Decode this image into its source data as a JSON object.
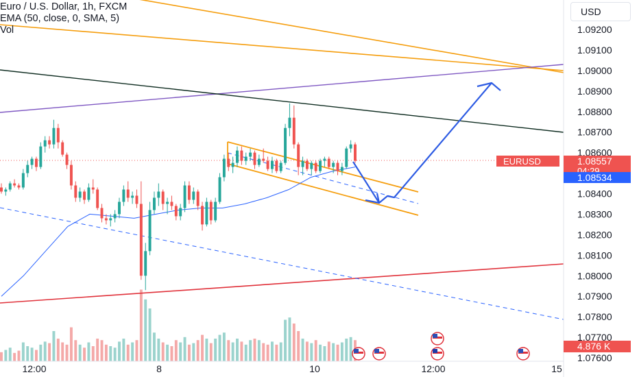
{
  "legend": {
    "symbol_line": "Euro / U.S. Dollar, 1h, FXCM",
    "ema_line": "EMA (50, close, 0, SMA, 5)",
    "vol_line": "Vol"
  },
  "currency_button": "USD",
  "badges": {
    "symbol": "EURUSD",
    "price": "1.08557",
    "countdown": "04:29",
    "ema_value": "1.08534",
    "volume_value": "4.876 K"
  },
  "colors": {
    "up": "#26a69a",
    "down": "#ef5350",
    "ema": "#2962ff",
    "orange": "#f59d0c",
    "purple": "#7e57c2",
    "red_line": "#e0313a",
    "dark_line": "#0d2b1f",
    "arrow": "#2d5be3"
  },
  "chart_data": {
    "type": "candlestick",
    "symbol": "EURUSD",
    "timeframe": "1h",
    "y_ticks": [
      "1.09200",
      "1.09100",
      "1.09000",
      "1.08900",
      "1.08800",
      "1.08700",
      "1.08600",
      "1.08400",
      "1.08300",
      "1.08200",
      "1.08100",
      "1.08000",
      "1.07900",
      "1.07800",
      "1.07700",
      "1.07600"
    ],
    "y_range": [
      1.0756,
      1.0934
    ],
    "x_ticks": [
      "12:00",
      "8",
      "10",
      "12:00",
      "15"
    ],
    "candles": [
      [
        1.0843,
        1.0845,
        1.084,
        1.0841
      ],
      [
        1.0841,
        1.0843,
        1.0839,
        1.0842
      ],
      [
        1.0842,
        1.0846,
        1.0841,
        1.0845
      ],
      [
        1.0845,
        1.0847,
        1.0843,
        1.0844
      ],
      [
        1.0844,
        1.0845,
        1.0842,
        1.0843
      ],
      [
        1.0843,
        1.0852,
        1.0842,
        1.085
      ],
      [
        1.085,
        1.0856,
        1.0848,
        1.0854
      ],
      [
        1.0854,
        1.0858,
        1.0852,
        1.0857
      ],
      [
        1.0857,
        1.0858,
        1.0851,
        1.0853
      ],
      [
        1.0853,
        1.0865,
        1.0852,
        1.0863
      ],
      [
        1.0863,
        1.0868,
        1.086,
        1.0866
      ],
      [
        1.0866,
        1.0868,
        1.0862,
        1.0864
      ],
      [
        1.0864,
        1.0876,
        1.0862,
        1.0872
      ],
      [
        1.0872,
        1.0874,
        1.0862,
        1.0865
      ],
      [
        1.0865,
        1.0866,
        1.0858,
        1.0859
      ],
      [
        1.0859,
        1.086,
        1.0852,
        1.0854
      ],
      [
        1.0854,
        1.0856,
        1.0842,
        1.0844
      ],
      [
        1.0844,
        1.0846,
        1.0836,
        1.0838
      ],
      [
        1.0838,
        1.0843,
        1.0836,
        1.0841
      ],
      [
        1.0841,
        1.0842,
        1.0835,
        1.0837
      ],
      [
        1.0837,
        1.0845,
        1.0836,
        1.0843
      ],
      [
        1.0843,
        1.0847,
        1.084,
        1.0842
      ],
      [
        1.0842,
        1.0843,
        1.0832,
        1.0833
      ],
      [
        1.0833,
        1.0835,
        1.0826,
        1.0828
      ],
      [
        1.0828,
        1.083,
        1.0825,
        1.0827
      ],
      [
        1.0827,
        1.083,
        1.0824,
        1.0828
      ],
      [
        1.0828,
        1.0832,
        1.0826,
        1.083
      ],
      [
        1.083,
        1.0838,
        1.0828,
        1.0836
      ],
      [
        1.0836,
        1.0844,
        1.0834,
        1.0842
      ],
      [
        1.0842,
        1.0846,
        1.0836,
        1.0838
      ],
      [
        1.0838,
        1.0841,
        1.0835,
        1.0839
      ],
      [
        1.0839,
        1.0842,
        1.0833,
        1.0835
      ],
      [
        1.0835,
        1.0846,
        1.0798,
        1.08
      ],
      [
        1.08,
        1.0816,
        1.0793,
        1.0812
      ],
      [
        1.0812,
        1.0836,
        1.081,
        1.0832
      ],
      [
        1.0832,
        1.0841,
        1.083,
        1.0838
      ],
      [
        1.0838,
        1.0845,
        1.0834,
        1.0841
      ],
      [
        1.0841,
        1.0842,
        1.0832,
        1.0835
      ],
      [
        1.0835,
        1.0838,
        1.083,
        1.0836
      ],
      [
        1.0836,
        1.0839,
        1.0832,
        1.0834
      ],
      [
        1.0834,
        1.0835,
        1.0827,
        1.0829
      ],
      [
        1.0829,
        1.0835,
        1.0827,
        1.0833
      ],
      [
        1.0833,
        1.0846,
        1.0831,
        1.0844
      ],
      [
        1.0844,
        1.0846,
        1.0835,
        1.0837
      ],
      [
        1.0837,
        1.0843,
        1.0835,
        1.0841
      ],
      [
        1.0841,
        1.0842,
        1.0832,
        1.0834
      ],
      [
        1.0834,
        1.0836,
        1.0822,
        1.0825
      ],
      [
        1.0825,
        1.0838,
        1.0824,
        1.0836
      ],
      [
        1.0836,
        1.0837,
        1.0825,
        1.0827
      ],
      [
        1.0827,
        1.0838,
        1.0826,
        1.0836
      ],
      [
        1.0836,
        1.085,
        1.0835,
        1.0848
      ],
      [
        1.0848,
        1.0859,
        1.0846,
        1.0857
      ],
      [
        1.0857,
        1.086,
        1.0851,
        1.0853
      ],
      [
        1.0853,
        1.0858,
        1.085,
        1.0855
      ],
      [
        1.0855,
        1.0863,
        1.0853,
        1.0861
      ],
      [
        1.0861,
        1.0863,
        1.0854,
        1.0856
      ],
      [
        1.0856,
        1.086,
        1.0854,
        1.0858
      ],
      [
        1.0858,
        1.0862,
        1.0856,
        1.086
      ],
      [
        1.086,
        1.0861,
        1.0852,
        1.0854
      ],
      [
        1.0854,
        1.0859,
        1.0853,
        1.0857
      ],
      [
        1.0857,
        1.0862,
        1.0855,
        1.0856
      ],
      [
        1.0856,
        1.0858,
        1.0851,
        1.0852
      ],
      [
        1.0852,
        1.0858,
        1.085,
        1.0856
      ],
      [
        1.0856,
        1.0857,
        1.085,
        1.0851
      ],
      [
        1.0851,
        1.0856,
        1.085,
        1.0855
      ],
      [
        1.0855,
        1.0874,
        1.0854,
        1.0872
      ],
      [
        1.0872,
        1.0884,
        1.0868,
        1.0877
      ],
      [
        1.0877,
        1.0883,
        1.0862,
        1.0864
      ],
      [
        1.0864,
        1.0865,
        1.0849,
        1.0853
      ],
      [
        1.0853,
        1.0858,
        1.0849,
        1.0856
      ],
      [
        1.0856,
        1.0857,
        1.0851,
        1.0852
      ],
      [
        1.0852,
        1.0856,
        1.0849,
        1.0855
      ],
      [
        1.0855,
        1.0856,
        1.085,
        1.0851
      ],
      [
        1.0851,
        1.0857,
        1.085,
        1.0856
      ],
      [
        1.0856,
        1.0858,
        1.0853,
        1.0857
      ],
      [
        1.0857,
        1.0858,
        1.0852,
        1.0853
      ],
      [
        1.0853,
        1.0856,
        1.085,
        1.0855
      ],
      [
        1.0855,
        1.0856,
        1.0849,
        1.0851
      ],
      [
        1.0851,
        1.0855,
        1.0849,
        1.0853
      ],
      [
        1.0853,
        1.0863,
        1.0852,
        1.0862
      ],
      [
        1.0862,
        1.0866,
        1.086,
        1.0864
      ],
      [
        1.0864,
        1.0865,
        1.0855,
        1.0856
      ]
    ],
    "volumes": [
      12,
      15,
      18,
      11,
      14,
      25,
      20,
      18,
      15,
      22,
      26,
      24,
      40,
      30,
      25,
      22,
      45,
      28,
      22,
      18,
      25,
      20,
      30,
      28,
      22,
      20,
      18,
      26,
      30,
      22,
      25,
      28,
      95,
      82,
      70,
      38,
      30,
      25,
      22,
      20,
      28,
      25,
      32,
      22,
      24,
      28,
      35,
      30,
      24,
      30,
      35,
      38,
      28,
      25,
      30,
      26,
      22,
      28,
      30,
      28,
      24,
      22,
      26,
      22,
      25,
      55,
      58,
      50,
      40,
      30,
      26,
      24,
      28,
      22,
      20,
      26,
      24,
      22,
      25,
      30,
      32,
      28
    ],
    "ema_50": [
      1.079,
      1.08,
      1.0812,
      1.0824,
      1.083,
      1.0829,
      1.0828,
      1.083,
      1.0832,
      1.0833,
      1.0833,
      1.0835,
      1.0838,
      1.0842,
      1.0848,
      1.0851,
      1.0853
    ],
    "drawings": {
      "orange_top_1": [
        1.0935,
        1.09
      ],
      "orange_top_2": [
        1.0915,
        1.09
      ],
      "purple_line": [
        1.0879,
        1.0902
      ],
      "dark_trend": [
        1.0898,
        1.0869
      ],
      "red_trend": [
        1.0786,
        1.0805
      ],
      "blue_dashed": [
        1.0833,
        1.0778
      ],
      "channel_top": [
        1.0864,
        1.0841
      ],
      "channel_bottom": [
        1.0856,
        1.083
      ],
      "channel_mid": [
        1.0856,
        1.0838
      ]
    }
  }
}
